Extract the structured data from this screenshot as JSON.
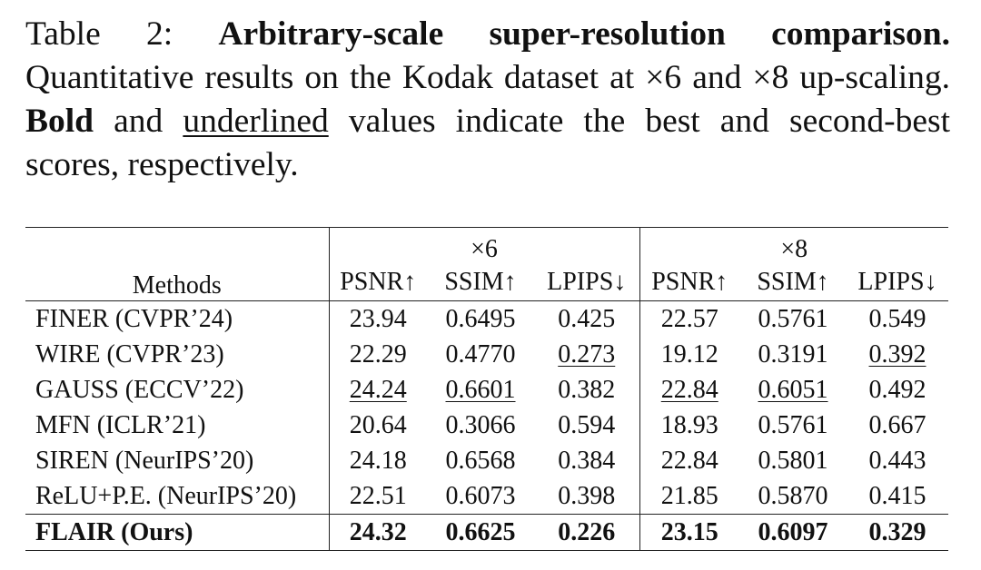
{
  "caption": {
    "label": "Table 2:",
    "title": "Arbitrary-scale super-resolution comparison.",
    "text1": "Quantitative results on the Kodak dataset at ×6 and ×8 up-scaling.",
    "bold_word": "Bold",
    "text2": "and",
    "underlined_word": "underlined",
    "text3": "values indicate the best and second-best scores, respectively."
  },
  "table": {
    "methods_header": "Methods",
    "groups": [
      "×6",
      "×8"
    ],
    "metrics": [
      "PSNR↑",
      "SSIM↑",
      "LPIPS↓",
      "PSNR↑",
      "SSIM↑",
      "LPIPS↓"
    ],
    "rows": [
      {
        "method": "FINER (CVPR’24)",
        "values": [
          "23.94",
          "0.6495",
          "0.425",
          "22.57",
          "0.5761",
          "0.549"
        ]
      },
      {
        "method": "WIRE (CVPR’23)",
        "values": [
          "22.29",
          "0.4770",
          "0.273",
          "19.12",
          "0.3191",
          "0.392"
        ]
      },
      {
        "method": "GAUSS (ECCV’22)",
        "values": [
          "24.24",
          "0.6601",
          "0.382",
          "22.84",
          "0.6051",
          "0.492"
        ]
      },
      {
        "method": "MFN (ICLR’21)",
        "values": [
          "20.64",
          "0.3066",
          "0.594",
          "18.93",
          "0.5761",
          "0.667"
        ]
      },
      {
        "method": "SIREN (NeurIPS’20)",
        "values": [
          "24.18",
          "0.6568",
          "0.384",
          "22.84",
          "0.5801",
          "0.443"
        ]
      },
      {
        "method": "ReLU+P.E. (NeurIPS’20)",
        "values": [
          "22.51",
          "0.6073",
          "0.398",
          "21.85",
          "0.5870",
          "0.415"
        ]
      },
      {
        "method": "FLAIR (Ours)",
        "values": [
          "24.32",
          "0.6625",
          "0.226",
          "23.15",
          "0.6097",
          "0.329"
        ]
      }
    ]
  }
}
